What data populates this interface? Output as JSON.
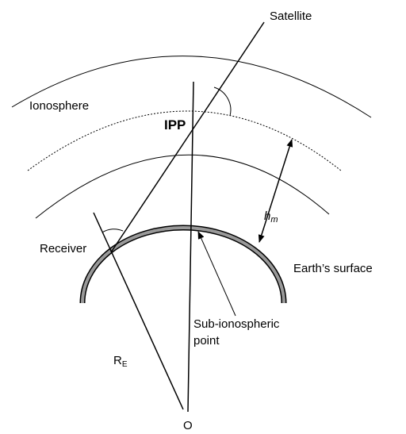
{
  "labels": {
    "satellite": "Satellite",
    "ionosphere": "Ionosphere",
    "ipp": "IPP",
    "height": {
      "symbol": "h",
      "subscript": "m"
    },
    "receiver": "Receiver",
    "earth_surface": "Earth’s surface",
    "sub_ionospheric": [
      "Sub-ionospheric",
      "point"
    ],
    "radius": {
      "symbol": "R",
      "subscript": "E"
    },
    "center": "O"
  }
}
